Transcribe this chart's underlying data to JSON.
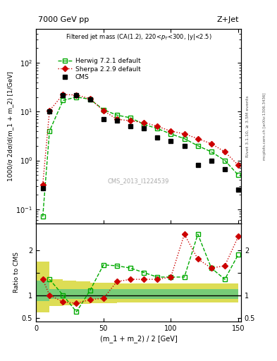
{
  "title_top": "7000 GeV pp",
  "title_right": "Z+Jet",
  "plot_title": "Filtered jet mass (CA(1.2), 220<p_{T}<300, |y|<2.5)",
  "ylabel_main": "1000/σ 2dσ/d(m_1 + m_2) [1/GeV]",
  "ylabel_ratio": "Ratio to CMS",
  "xlabel": "(m_1 + m_2) / 2 [GeV]",
  "watermark": "CMS_2013_I1224539",
  "rivet_label": "Rivet 3.1.10, ≥ 3.5M events",
  "mcplots_label": "mcplots.cern.ch [arXiv:1306.3436]",
  "x_cms": [
    5,
    10,
    20,
    30,
    40,
    50,
    60,
    70,
    80,
    90,
    100,
    110,
    120,
    130,
    140,
    150
  ],
  "y_cms": [
    0.27,
    10.0,
    22.0,
    22.0,
    18.0,
    7.0,
    6.5,
    5.0,
    4.5,
    3.0,
    2.5,
    2.0,
    0.8,
    1.0,
    0.65,
    0.25
  ],
  "x_herwig": [
    5,
    10,
    20,
    30,
    40,
    50,
    60,
    70,
    80,
    90,
    100,
    110,
    120,
    130,
    140,
    150
  ],
  "y_herwig": [
    0.07,
    4.0,
    17.0,
    20.0,
    18.0,
    11.0,
    8.5,
    7.5,
    5.5,
    4.5,
    3.5,
    2.8,
    2.0,
    1.5,
    1.0,
    0.5
  ],
  "x_sherpa": [
    5,
    10,
    20,
    30,
    40,
    50,
    60,
    70,
    80,
    90,
    100,
    110,
    120,
    130,
    140,
    150
  ],
  "y_sherpa": [
    0.32,
    10.5,
    22.5,
    22.0,
    18.5,
    10.5,
    7.0,
    6.5,
    6.0,
    5.0,
    4.0,
    3.5,
    2.8,
    2.2,
    1.5,
    0.8
  ],
  "ratio_x": [
    5,
    10,
    20,
    30,
    40,
    50,
    60,
    70,
    80,
    90,
    100,
    110,
    120,
    130,
    140,
    150
  ],
  "ratio_herwig": [
    null,
    1.35,
    1.0,
    0.63,
    1.1,
    1.67,
    1.65,
    1.6,
    1.5,
    1.4,
    1.4,
    1.4,
    2.35,
    1.6,
    1.35,
    1.9
  ],
  "ratio_sherpa": [
    1.35,
    1.0,
    0.85,
    0.82,
    0.9,
    0.93,
    1.3,
    1.35,
    1.35,
    1.35,
    1.4,
    2.35,
    1.8,
    1.6,
    1.65,
    2.3
  ],
  "band_x_edges": [
    0,
    10,
    20,
    30,
    40,
    60,
    80,
    100,
    120,
    150
  ],
  "band_green_lo": [
    0.87,
    0.92,
    0.92,
    0.92,
    0.92,
    0.92,
    0.92,
    0.92,
    0.92
  ],
  "band_green_hi": [
    1.32,
    1.13,
    1.13,
    1.13,
    1.13,
    1.13,
    1.13,
    1.13,
    1.13
  ],
  "band_yellow_lo": [
    0.62,
    0.76,
    0.78,
    0.8,
    0.82,
    0.84,
    0.84,
    0.84,
    0.84
  ],
  "band_yellow_hi": [
    1.75,
    1.35,
    1.32,
    1.3,
    1.28,
    1.26,
    1.26,
    1.26,
    1.26
  ],
  "cms_color": "#000000",
  "herwig_color": "#00aa00",
  "sherpa_color": "#cc0000",
  "band_green_color": "#77cc77",
  "band_yellow_color": "#dddd55"
}
